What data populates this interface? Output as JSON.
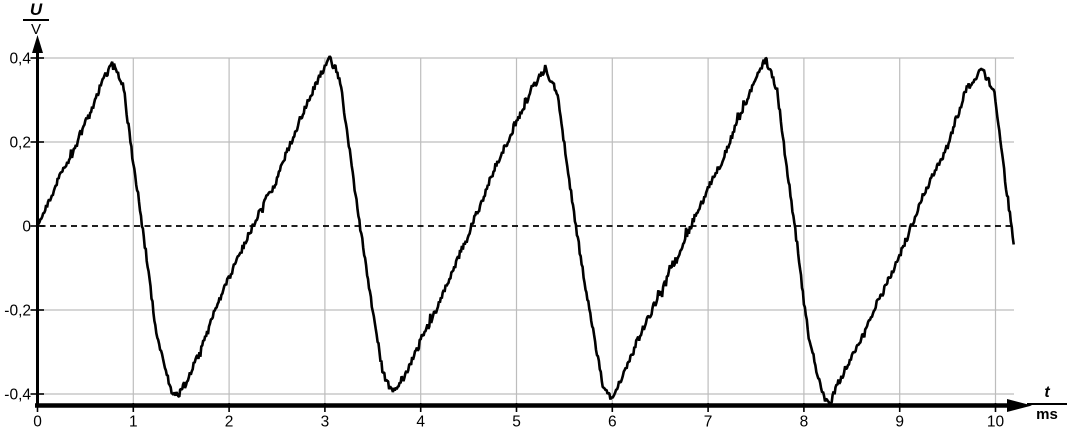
{
  "chart": {
    "background_color": "#ffffff",
    "grid_color": "#bdbdbd",
    "axis_color": "#000000",
    "curve_color": "#000000",
    "text_color": "#000000",
    "y_axis_label": {
      "numerator": "U",
      "denominator": "V"
    },
    "x_axis_label": {
      "numerator": "t",
      "denominator": "ms"
    }
  },
  "chart_data": {
    "type": "line",
    "title": "",
    "xlabel": "t / ms",
    "ylabel": "U / V",
    "xlim": [
      0,
      10.6
    ],
    "ylim": [
      -0.45,
      0.45
    ],
    "grid": true,
    "legend_position": "none",
    "zero_line_style": "dashed",
    "x_ticks": [
      0,
      1,
      2,
      3,
      4,
      5,
      6,
      7,
      8,
      9,
      10
    ],
    "x_tick_labels": [
      "0",
      "1",
      "2",
      "3",
      "4",
      "5",
      "6",
      "7",
      "8",
      "9",
      "10"
    ],
    "y_ticks": [
      0.4,
      0.2,
      0,
      -0.2,
      -0.4
    ],
    "y_tick_labels": [
      "0,4",
      "0,2",
      "0",
      "-0,2",
      "-0,4"
    ],
    "series": [
      {
        "name": "U(t)",
        "shape": "noisy sawtooth: slow linear rise (~0.5 V/ms), fast fall (~1.6 V/ms)",
        "period_ms": 2.25,
        "peak_v": 0.39,
        "trough_v": -0.41,
        "noise_amplitude_v": 0.015,
        "keypoints_t_u": [
          [
            0.0,
            0.0
          ],
          [
            0.4,
            0.2
          ],
          [
            0.68,
            0.35
          ],
          [
            0.8,
            0.39
          ],
          [
            0.9,
            0.33
          ],
          [
            1.25,
            -0.28
          ],
          [
            1.4,
            -0.39
          ],
          [
            1.47,
            -0.405
          ],
          [
            1.56,
            -0.375
          ],
          [
            2.0,
            -0.13
          ],
          [
            2.5,
            0.11
          ],
          [
            2.9,
            0.33
          ],
          [
            3.05,
            0.39
          ],
          [
            3.16,
            0.33
          ],
          [
            3.45,
            -0.14
          ],
          [
            3.62,
            -0.38
          ],
          [
            3.72,
            -0.405
          ],
          [
            3.85,
            -0.355
          ],
          [
            4.3,
            -0.13
          ],
          [
            4.8,
            0.14
          ],
          [
            5.18,
            0.33
          ],
          [
            5.3,
            0.385
          ],
          [
            5.42,
            0.32
          ],
          [
            5.62,
            0.0
          ],
          [
            5.9,
            -0.38
          ],
          [
            6.0,
            -0.42
          ],
          [
            6.12,
            -0.355
          ],
          [
            6.7,
            -0.07
          ],
          [
            7.2,
            0.18
          ],
          [
            7.48,
            0.33
          ],
          [
            7.6,
            0.385
          ],
          [
            7.72,
            0.32
          ],
          [
            8.05,
            -0.26
          ],
          [
            8.2,
            -0.4
          ],
          [
            8.26,
            -0.425
          ],
          [
            8.4,
            -0.35
          ],
          [
            9.0,
            -0.06
          ],
          [
            9.5,
            0.2
          ],
          [
            9.7,
            0.335
          ],
          [
            9.85,
            0.38
          ],
          [
            9.98,
            0.33
          ],
          [
            10.19,
            -0.03
          ]
        ]
      }
    ]
  }
}
